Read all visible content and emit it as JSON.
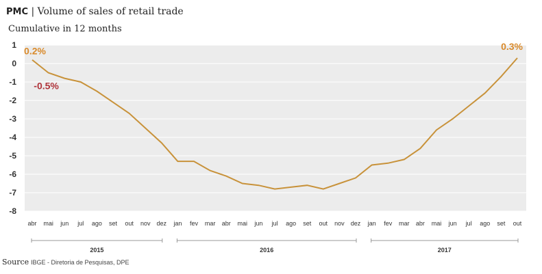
{
  "header": {
    "prefix": "PMC",
    "separator": " | ",
    "title": "Volume of sales of retail trade",
    "subtitle": "Cumulative in 12 months"
  },
  "source": {
    "label": "Source",
    "text": "IBGE - Diretoria de Pesquisas, DPE"
  },
  "colors": {
    "line": "#c8923a",
    "plot_background": "#ececec",
    "gridline": "#ffffff",
    "annotation_orange": "#d98a2b",
    "annotation_red": "#b0343b"
  },
  "chart_data": {
    "type": "line",
    "title": "Volume of sales of retail trade",
    "subtitle": "Cumulative in 12 months",
    "ylim": [
      -8,
      1
    ],
    "yticks": [
      1,
      0,
      -1,
      -2,
      -3,
      -4,
      -5,
      -6,
      -7,
      -8
    ],
    "grid": true,
    "categories": [
      "abr",
      "mai",
      "jun",
      "jul",
      "ago",
      "set",
      "out",
      "nov",
      "dez",
      "jan",
      "fev",
      "mar",
      "abr",
      "mai",
      "jun",
      "jul",
      "ago",
      "set",
      "out",
      "nov",
      "dez",
      "jan",
      "fev",
      "mar",
      "abr",
      "mai",
      "jun",
      "jul",
      "ago",
      "set",
      "out"
    ],
    "years": [
      {
        "label": "2015",
        "start": 0,
        "end": 8
      },
      {
        "label": "2016",
        "start": 9,
        "end": 20
      },
      {
        "label": "2017",
        "start": 21,
        "end": 30
      }
    ],
    "series": [
      {
        "values": [
          0.2,
          -0.5,
          -0.8,
          -1.0,
          -1.5,
          -2.1,
          -2.7,
          -3.5,
          -4.3,
          -5.3,
          -5.3,
          -5.8,
          -6.1,
          -6.5,
          -6.6,
          -6.8,
          -6.7,
          -6.6,
          -6.8,
          -6.5,
          -6.2,
          -5.5,
          -5.4,
          -5.2,
          -4.6,
          -3.6,
          -3.0,
          -2.3,
          -1.6,
          -0.7,
          0.3
        ]
      }
    ],
    "annotations": [
      {
        "text": "0.2%",
        "index": 0,
        "color": "orange"
      },
      {
        "text": "-0.5%",
        "index": 1,
        "color": "red"
      },
      {
        "text": "0.3%",
        "index": 30,
        "color": "orange"
      }
    ]
  }
}
